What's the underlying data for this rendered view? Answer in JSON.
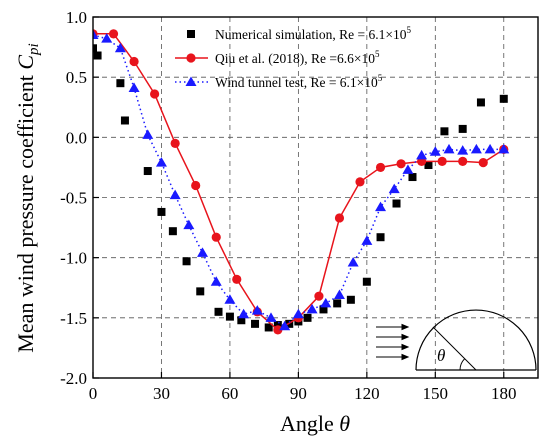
{
  "chart_data": {
    "type": "scatter",
    "xlabel": "Angle",
    "xlabel_symbol": "θ",
    "ylabel": "Mean wind pressure coefficient",
    "ylabel_symbol": "C",
    "ylabel_subscript": "pi",
    "xlim": [
      0,
      195
    ],
    "ylim": [
      -2.0,
      1.0
    ],
    "xticks": [
      0,
      30,
      60,
      90,
      120,
      150,
      180
    ],
    "yticks": [
      1.0,
      0.5,
      0.0,
      -0.5,
      -1.0,
      -1.5,
      -2.0
    ],
    "xtick_labels": [
      "0",
      "30",
      "60",
      "90",
      "120",
      "150",
      "180"
    ],
    "ytick_labels": [
      "1.0",
      "0.5",
      "0.0",
      "-0.5",
      "-1.0",
      "-1.5",
      "-2.0"
    ],
    "grid": "dashed",
    "legend_position": "top-right",
    "series": [
      {
        "name": "Numerical simulation, Re = 6.1×10",
        "name_sup": "5",
        "marker": "square",
        "line": "none",
        "color": "#000000",
        "x": [
          0,
          2,
          12,
          14,
          24,
          30,
          35,
          41,
          47,
          55,
          60,
          65,
          71,
          77,
          81,
          86,
          90,
          94,
          101,
          107,
          113,
          120,
          126,
          133,
          140,
          147,
          154,
          162,
          170,
          180
        ],
        "y": [
          0.74,
          0.68,
          0.45,
          0.14,
          -0.28,
          -0.62,
          -0.78,
          -1.03,
          -1.28,
          -1.45,
          -1.49,
          -1.52,
          -1.55,
          -1.58,
          -1.56,
          -1.55,
          -1.53,
          -1.5,
          -1.43,
          -1.38,
          -1.35,
          -1.2,
          -0.83,
          -0.55,
          -0.33,
          -0.23,
          0.05,
          0.07,
          0.29,
          0.32
        ]
      },
      {
        "name": "Qiu et al. (2018), Re =6.6×10",
        "name_sup": "5",
        "marker": "circle",
        "line": "solid",
        "color": "#e8141c",
        "x": [
          0,
          9,
          18,
          27,
          36,
          45,
          54,
          63,
          72,
          81,
          90,
          99,
          108,
          117,
          126,
          135,
          144,
          153,
          162,
          171,
          180
        ],
        "y": [
          0.86,
          0.86,
          0.63,
          0.36,
          -0.05,
          -0.4,
          -0.83,
          -1.18,
          -1.45,
          -1.6,
          -1.5,
          -1.32,
          -0.67,
          -0.37,
          -0.25,
          -0.22,
          -0.2,
          -0.2,
          -0.2,
          -0.21,
          -0.1
        ]
      },
      {
        "name": "Wind tunnel test, Re = 6.1×10",
        "name_sup": "5",
        "marker": "triangle",
        "line": "dotted",
        "color": "#1a1aff",
        "x": [
          0,
          6,
          12,
          18,
          24,
          30,
          36,
          42,
          48,
          54,
          60,
          66,
          72,
          78,
          84,
          90,
          96,
          102,
          108,
          114,
          120,
          126,
          132,
          138,
          144,
          150,
          156,
          162,
          168,
          174,
          180
        ],
        "y": [
          0.85,
          0.82,
          0.74,
          0.41,
          0.02,
          -0.21,
          -0.48,
          -0.73,
          -0.96,
          -1.2,
          -1.35,
          -1.47,
          -1.44,
          -1.5,
          -1.57,
          -1.47,
          -1.43,
          -1.38,
          -1.31,
          -1.04,
          -0.86,
          -0.58,
          -0.43,
          -0.27,
          -0.15,
          -0.12,
          -0.1,
          -0.11,
          -0.1,
          -0.1,
          -0.1
        ]
      }
    ],
    "inset": {
      "label": "θ",
      "description_icon": "wind-arrows-roof-icon"
    }
  }
}
